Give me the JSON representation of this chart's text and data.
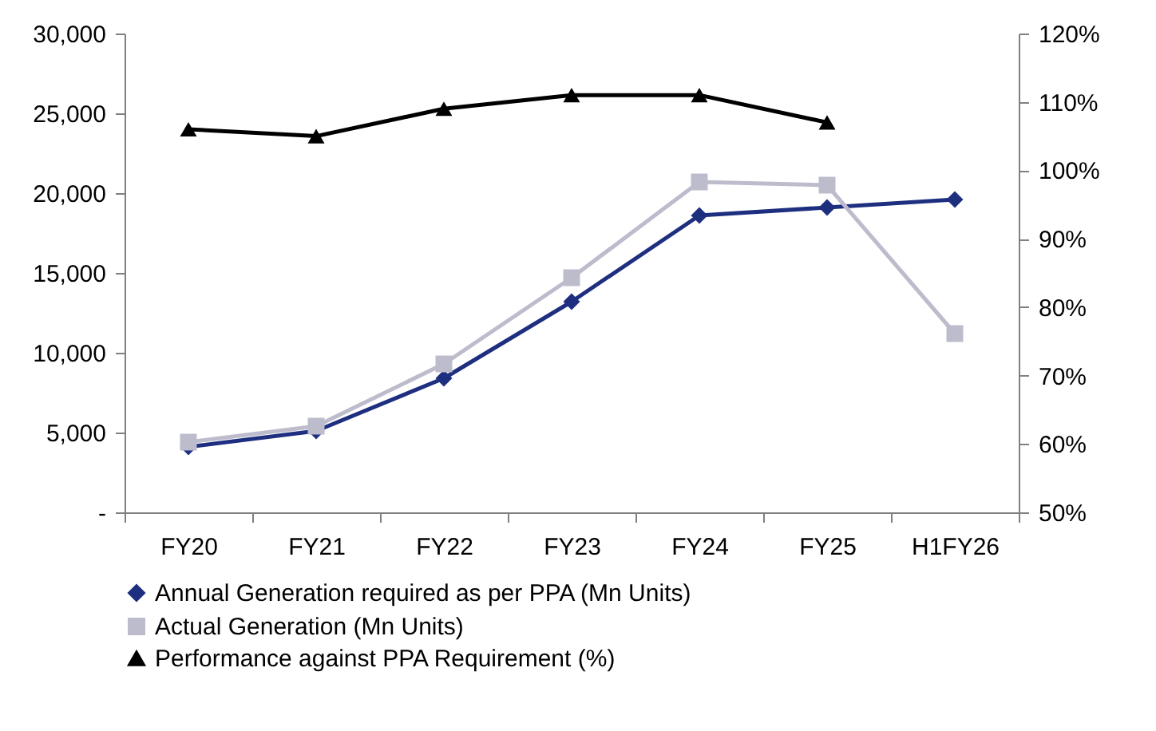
{
  "chart_data": {
    "type": "line",
    "categories": [
      "FY20",
      "FY21",
      "FY22",
      "FY23",
      "FY24",
      "FY25",
      "H1FY26"
    ],
    "series": [
      {
        "name": "Annual Generation required as per PPA (Mn Units)",
        "color": "#1f2f80",
        "marker": "diamond",
        "values": [
          4100,
          5100,
          8400,
          13200,
          18600,
          19100,
          19600
        ]
      },
      {
        "name": "Actual Generation (Mn Units)",
        "color": "#bcbccc",
        "marker": "square",
        "values": [
          4400,
          5400,
          9300,
          14700,
          20700,
          20500,
          11200
        ]
      },
      {
        "name": "Performance against PPA Requirement (%)",
        "color": "#000000",
        "marker": "triangle",
        "axis": "y2",
        "values": [
          106,
          105,
          109,
          111,
          111,
          107,
          null
        ]
      }
    ],
    "ylim": [
      0,
      30000
    ],
    "yticks": [
      {
        "value": 0,
        "label": "-"
      },
      {
        "value": 5000,
        "label": "5,000"
      },
      {
        "value": 10000,
        "label": "10,000"
      },
      {
        "value": 15000,
        "label": "15,000"
      },
      {
        "value": 20000,
        "label": "20,000"
      },
      {
        "value": 25000,
        "label": "25,000"
      },
      {
        "value": 30000,
        "label": "30,000"
      }
    ],
    "y2lim": [
      50,
      120
    ],
    "y2ticks": [
      {
        "value": 50,
        "label": "50%"
      },
      {
        "value": 60,
        "label": "60%"
      },
      {
        "value": 70,
        "label": "70%"
      },
      {
        "value": 80,
        "label": "80%"
      },
      {
        "value": 90,
        "label": "90%"
      },
      {
        "value": 100,
        "label": "100%"
      },
      {
        "value": 110,
        "label": "110%"
      },
      {
        "value": 120,
        "label": "120%"
      }
    ],
    "grid": false,
    "legend": "bottom",
    "line_style": "solid"
  }
}
